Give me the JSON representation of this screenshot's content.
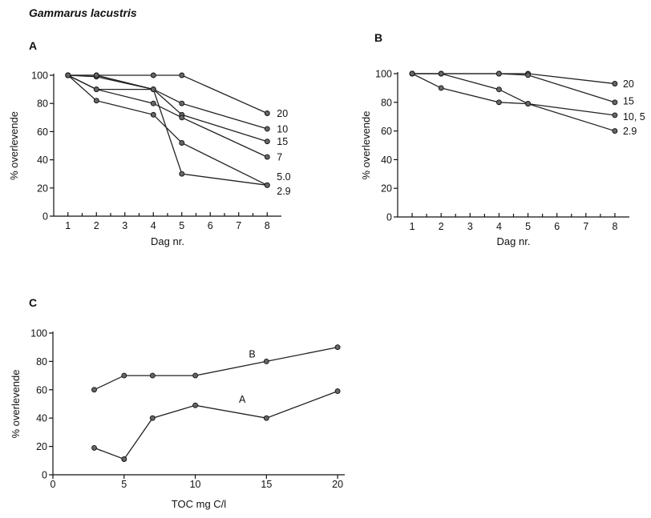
{
  "figure_title": "Gammarus lacustris",
  "chart_data": [
    {
      "panel": "A",
      "type": "line",
      "xlabel": "Dag nr.",
      "ylabel": "% overlevende",
      "xlim": [
        0.5,
        8.5
      ],
      "ylim": [
        0,
        100
      ],
      "x_ticks": [
        "1",
        "2",
        "3",
        "4",
        "5",
        "6",
        "7",
        "8"
      ],
      "y_ticks": [
        "0",
        "20",
        "40",
        "60",
        "80",
        "100"
      ],
      "series": [
        {
          "name": "20",
          "x": [
            1,
            2,
            4,
            5,
            8
          ],
          "y": [
            100,
            100,
            100,
            100,
            73
          ]
        },
        {
          "name": "10",
          "x": [
            1,
            2,
            4,
            5,
            8
          ],
          "y": [
            100,
            99,
            90,
            80,
            62
          ]
        },
        {
          "name": "15",
          "x": [
            1,
            2,
            4,
            5,
            8
          ],
          "y": [
            100,
            90,
            90,
            72,
            53
          ]
        },
        {
          "name": "7",
          "x": [
            1,
            2,
            4,
            5,
            8
          ],
          "y": [
            100,
            90,
            80,
            70,
            42
          ]
        },
        {
          "name": "5.0",
          "x": [
            1,
            2,
            4,
            5,
            8
          ],
          "y": [
            100,
            100,
            90,
            30,
            22
          ]
        },
        {
          "name": "2.9",
          "x": [
            1,
            2,
            4,
            5,
            8
          ],
          "y": [
            100,
            82,
            72,
            52,
            22
          ]
        }
      ],
      "label_y": {
        "20": 73,
        "10": 62,
        "15": 53,
        "7": 42,
        "5.0": 28,
        "2.9": 18
      }
    },
    {
      "panel": "B",
      "type": "line",
      "xlabel": "Dag nr.",
      "ylabel": "% overlevende",
      "xlim": [
        0.5,
        8.5
      ],
      "ylim": [
        0,
        100
      ],
      "x_ticks": [
        "1",
        "2",
        "3",
        "4",
        "5",
        "6",
        "7",
        "8"
      ],
      "y_ticks": [
        "0",
        "20",
        "40",
        "60",
        "80",
        "100"
      ],
      "series": [
        {
          "name": "20",
          "x": [
            1,
            2,
            4,
            5,
            8
          ],
          "y": [
            100,
            100,
            100,
            100,
            93
          ]
        },
        {
          "name": "15",
          "x": [
            1,
            2,
            4,
            5,
            8
          ],
          "y": [
            100,
            100,
            100,
            99,
            80
          ]
        },
        {
          "name": "10, 5",
          "x": [
            1,
            2,
            4,
            5,
            8
          ],
          "y": [
            100,
            100,
            89,
            79,
            71
          ]
        },
        {
          "name": "2.9",
          "x": [
            1,
            2,
            4,
            5,
            8
          ],
          "y": [
            100,
            90,
            80,
            79,
            60
          ]
        }
      ],
      "label_y": {
        "20": 93,
        "15": 81,
        "10, 5": 70,
        "2.9": 60
      }
    },
    {
      "panel": "C",
      "type": "line",
      "xlabel": "TOC mg C/l",
      "ylabel": "% overlevende",
      "xlim": [
        0,
        20.5
      ],
      "ylim": [
        0,
        100
      ],
      "x_ticks": [
        "0",
        "5",
        "10",
        "15",
        "20"
      ],
      "y_ticks": [
        "0",
        "20",
        "40",
        "60",
        "80",
        "100"
      ],
      "series": [
        {
          "name": "B",
          "x": [
            2.9,
            5,
            7,
            10,
            15,
            20
          ],
          "y": [
            60,
            70,
            70,
            70,
            80,
            90
          ]
        },
        {
          "name": "A",
          "x": [
            2.9,
            5,
            7,
            10,
            15,
            20
          ],
          "y": [
            19,
            11,
            40,
            49,
            40,
            59
          ]
        }
      ],
      "label_pos": {
        "B": [
          14,
          85
        ],
        "A": [
          13.3,
          53
        ]
      }
    }
  ]
}
